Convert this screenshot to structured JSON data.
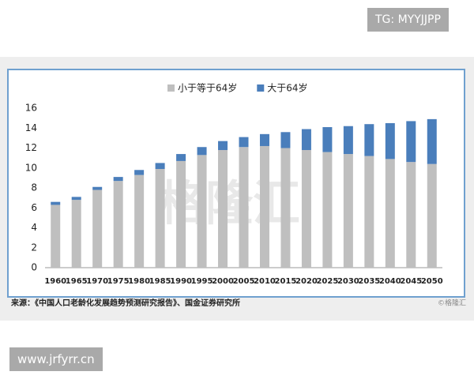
{
  "header_tag": "TG: MYYJJPP",
  "footer_url": "www.jrfyrr.cn",
  "source": "来源：《中国人口老龄化发展趋势预测研究报告》、国金证券研究所",
  "watermark": "格隆汇",
  "corner_mark": "©格隆汇",
  "chart_data": {
    "type": "bar",
    "stacked": true,
    "legend": "top",
    "categories": [
      "1960",
      "1965",
      "1970",
      "1975",
      "1980",
      "1985",
      "1990",
      "1995",
      "2000",
      "2005",
      "2010",
      "2015",
      "2020",
      "2025",
      "2030",
      "2035",
      "2040",
      "2045",
      "2050"
    ],
    "series": [
      {
        "name": "小于等于64岁",
        "color": "#bfbfbf",
        "values": [
          6.3,
          6.8,
          7.8,
          8.7,
          9.3,
          9.9,
          10.7,
          11.3,
          11.8,
          12.1,
          12.2,
          12.0,
          11.8,
          11.6,
          11.4,
          11.2,
          10.9,
          10.6,
          10.4
        ]
      },
      {
        "name": "大于64岁",
        "color": "#4a7ebb",
        "values": [
          0.3,
          0.3,
          0.3,
          0.4,
          0.5,
          0.6,
          0.7,
          0.8,
          0.9,
          1.0,
          1.2,
          1.6,
          2.1,
          2.5,
          2.8,
          3.2,
          3.6,
          4.1,
          4.5
        ]
      }
    ],
    "ylim": [
      0,
      16
    ],
    "yticks": [
      0,
      2,
      4,
      6,
      8,
      10,
      12,
      14,
      16
    ],
    "grid": false
  }
}
